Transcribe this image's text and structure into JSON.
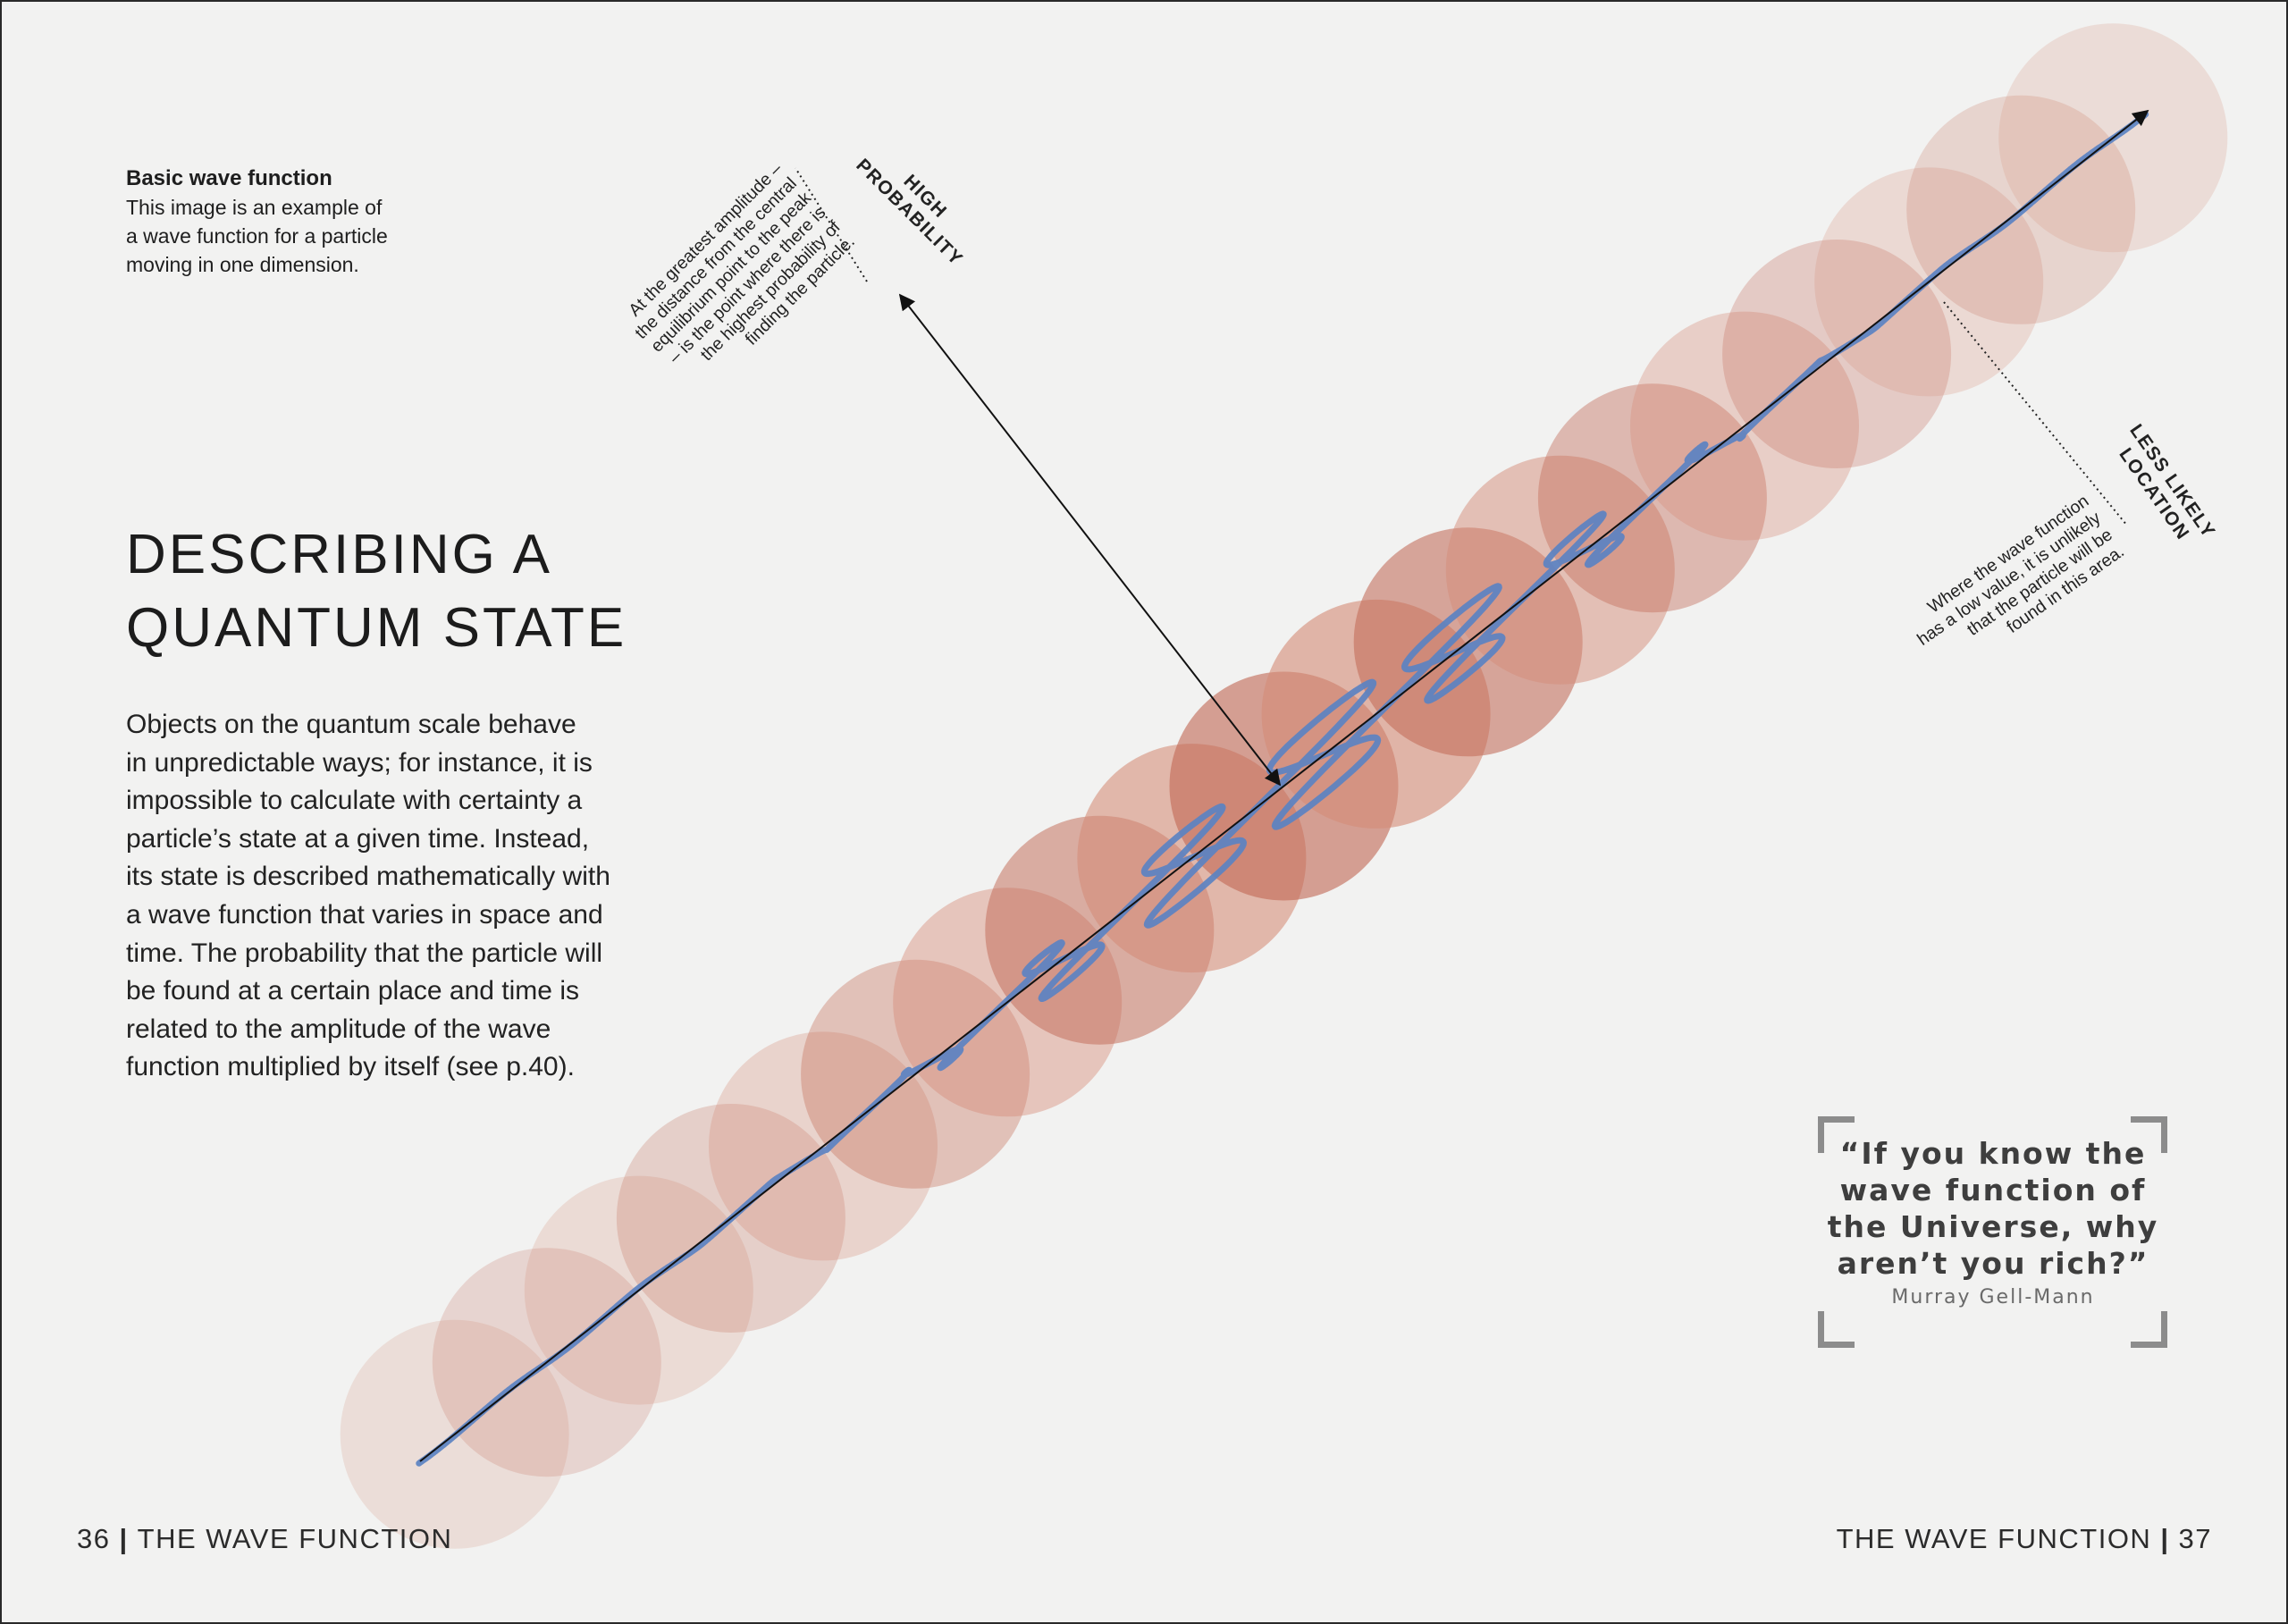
{
  "caption": {
    "title": "Basic wave function",
    "lines": [
      "This image is an example of",
      "a wave function for a particle",
      "moving in one dimension."
    ]
  },
  "heading": {
    "line1": "DESCRIBING A",
    "line2": "QUANTUM STATE"
  },
  "intro": {
    "lines": [
      "Objects on the quantum scale behave",
      "in unpredictable ways; for instance, it is",
      "impossible to calculate with certainty a",
      "particle’s state at a given time. Instead,",
      "its state is described mathematically with",
      "a wave function that varies in space and",
      "time. The probability that the particle will",
      "be found at a certain place and time is",
      "related to the amplitude of the wave",
      "function multiplied by itself (see p.40)."
    ]
  },
  "labels": {
    "high": {
      "title_lines": [
        "HIGH",
        "PROBABILITY"
      ],
      "text_lines": [
        "At the greatest amplitude –",
        "the distance from the central",
        "equilibrium point to the peak",
        "– is the point where there is",
        "the highest probability of",
        "finding the particle."
      ]
    },
    "low": {
      "title_lines": [
        "LESS LIKELY",
        "LOCATION"
      ],
      "text_lines": [
        "Where the wave function",
        "has a low value, it is unlikely",
        "that the particle will be",
        "found in this area."
      ]
    }
  },
  "quote": {
    "lines": [
      "“If you know the",
      "wave function of",
      "the Universe, why",
      "aren’t you rich?”"
    ],
    "author": "Murray Gell-Mann"
  },
  "footer": {
    "left_page": "36",
    "left_title": "THE WAVE FUNCTION",
    "right_title": "THE WAVE FUNCTION",
    "right_page": "37"
  },
  "colors": {
    "wave": "#5b82c2",
    "circle_light": "#e9cbbd",
    "circle_dark": "#c26a56",
    "background": "#f2f2f1"
  },
  "icons": [
    "arrow-icon",
    "quote-bracket-icon"
  ]
}
